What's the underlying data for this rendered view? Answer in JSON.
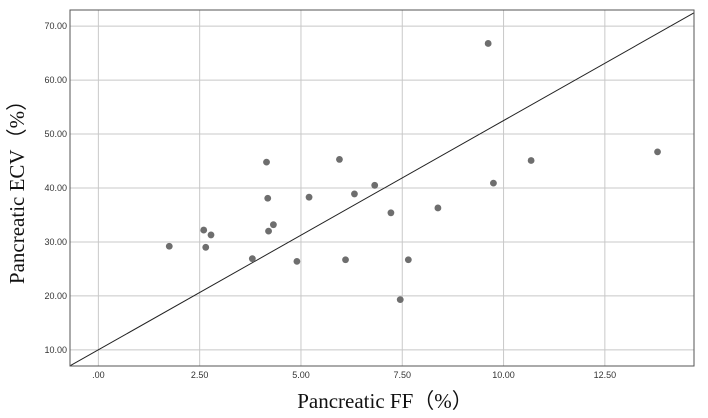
{
  "chart_data": {
    "type": "scatter",
    "title": "",
    "xlabel": "Pancreatic FF（%）",
    "ylabel": "Pancreatic ECV（%）",
    "xlim": [
      -0.7,
      14.7
    ],
    "ylim": [
      7,
      73
    ],
    "grid": true,
    "x_ticks": [
      0,
      2.5,
      5,
      7.5,
      10,
      12.5
    ],
    "x_tick_labels": [
      ".00",
      "2.50",
      "5.00",
      "7.50",
      "10.00",
      "12.50"
    ],
    "y_ticks": [
      10,
      20,
      30,
      40,
      50,
      60,
      70
    ],
    "y_tick_labels": [
      "10.00",
      "20.00",
      "30.00",
      "40.00",
      "50.00",
      "60.00",
      "70.00"
    ],
    "reference_line": {
      "slope": 4.25,
      "intercept": 10.0
    },
    "colors": {
      "point": "#6e6e6e",
      "line": "#222222",
      "grid": "#c8c8c8",
      "frame": "#555555"
    },
    "points": [
      {
        "x": 1.75,
        "y": 29.2
      },
      {
        "x": 2.6,
        "y": 32.2
      },
      {
        "x": 2.65,
        "y": 29.0
      },
      {
        "x": 2.78,
        "y": 31.3
      },
      {
        "x": 3.8,
        "y": 26.9
      },
      {
        "x": 4.15,
        "y": 44.8
      },
      {
        "x": 4.18,
        "y": 38.1
      },
      {
        "x": 4.2,
        "y": 32.0
      },
      {
        "x": 4.32,
        "y": 33.2
      },
      {
        "x": 4.9,
        "y": 26.4
      },
      {
        "x": 5.2,
        "y": 38.3
      },
      {
        "x": 5.95,
        "y": 45.3
      },
      {
        "x": 6.1,
        "y": 26.7
      },
      {
        "x": 6.32,
        "y": 38.9
      },
      {
        "x": 6.82,
        "y": 40.5
      },
      {
        "x": 7.22,
        "y": 35.4
      },
      {
        "x": 7.45,
        "y": 19.3
      },
      {
        "x": 7.65,
        "y": 26.7
      },
      {
        "x": 8.38,
        "y": 36.3
      },
      {
        "x": 9.62,
        "y": 66.8
      },
      {
        "x": 9.75,
        "y": 40.9
      },
      {
        "x": 10.68,
        "y": 45.1
      },
      {
        "x": 13.8,
        "y": 46.7
      }
    ]
  }
}
